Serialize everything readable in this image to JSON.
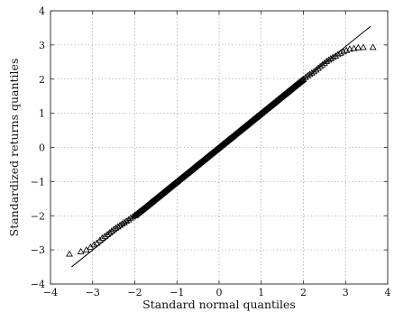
{
  "chart_data": {
    "type": "scatter",
    "xlabel": "Standard normal quantiles",
    "ylabel": "Standardized returns quantiles",
    "xlim": [
      -4,
      4
    ],
    "ylim": [
      -4,
      4
    ],
    "xticks": [
      -4,
      -3,
      -2,
      -1,
      0,
      1,
      2,
      3,
      4
    ],
    "yticks": [
      -4,
      -3,
      -2,
      -1,
      0,
      1,
      2,
      3,
      4
    ],
    "xtick_labels": [
      "−4",
      "−3",
      "−2",
      "−1",
      "0",
      "1",
      "2",
      "3",
      "4"
    ],
    "ytick_labels": [
      "−4",
      "−3",
      "−2",
      "−1",
      "0",
      "1",
      "2",
      "3",
      "4"
    ],
    "grid": true,
    "marker": "triangle-open",
    "reference_line": {
      "x": [
        -3.5,
        3.6
      ],
      "y": [
        -3.5,
        3.55
      ]
    },
    "points": [
      {
        "x": -3.55,
        "y": -3.12
      },
      {
        "x": -3.28,
        "y": -3.05
      },
      {
        "x": -3.15,
        "y": -3.0
      },
      {
        "x": -3.05,
        "y": -2.92
      },
      {
        "x": -2.97,
        "y": -2.85
      },
      {
        "x": -2.9,
        "y": -2.8
      },
      {
        "x": -2.83,
        "y": -2.72
      },
      {
        "x": -2.77,
        "y": -2.65
      },
      {
        "x": -2.71,
        "y": -2.6
      },
      {
        "x": -2.65,
        "y": -2.55
      },
      {
        "x": -2.6,
        "y": -2.5
      },
      {
        "x": -2.55,
        "y": -2.45
      },
      {
        "x": -2.5,
        "y": -2.4
      },
      {
        "x": -2.45,
        "y": -2.36
      },
      {
        "x": -2.4,
        "y": -2.32
      },
      {
        "x": -2.35,
        "y": -2.28
      },
      {
        "x": -2.3,
        "y": -2.24
      },
      {
        "x": -2.25,
        "y": -2.2
      },
      {
        "x": -2.2,
        "y": -2.16
      },
      {
        "x": -2.15,
        "y": -2.12
      },
      {
        "x": -2.1,
        "y": -2.07
      },
      {
        "x": -2.05,
        "y": -2.03
      },
      {
        "x": -2.0,
        "y": -1.98
      },
      {
        "x": 2.0,
        "y": 2.0
      },
      {
        "x": 2.05,
        "y": 2.05
      },
      {
        "x": 2.1,
        "y": 2.1
      },
      {
        "x": 2.15,
        "y": 2.14
      },
      {
        "x": 2.2,
        "y": 2.18
      },
      {
        "x": 2.25,
        "y": 2.22
      },
      {
        "x": 2.3,
        "y": 2.27
      },
      {
        "x": 2.35,
        "y": 2.32
      },
      {
        "x": 2.4,
        "y": 2.37
      },
      {
        "x": 2.45,
        "y": 2.42
      },
      {
        "x": 2.5,
        "y": 2.47
      },
      {
        "x": 2.55,
        "y": 2.52
      },
      {
        "x": 2.6,
        "y": 2.56
      },
      {
        "x": 2.65,
        "y": 2.6
      },
      {
        "x": 2.7,
        "y": 2.64
      },
      {
        "x": 2.76,
        "y": 2.68
      },
      {
        "x": 2.82,
        "y": 2.72
      },
      {
        "x": 2.88,
        "y": 2.76
      },
      {
        "x": 2.95,
        "y": 2.8
      },
      {
        "x": 3.02,
        "y": 2.84
      },
      {
        "x": 3.1,
        "y": 2.88
      },
      {
        "x": 3.2,
        "y": 2.9
      },
      {
        "x": 3.3,
        "y": 2.92
      },
      {
        "x": 3.42,
        "y": 2.93
      },
      {
        "x": 3.65,
        "y": 2.93
      }
    ],
    "dense_band": {
      "x_range": [
        -2.0,
        2.0
      ],
      "step": 0.02
    }
  }
}
